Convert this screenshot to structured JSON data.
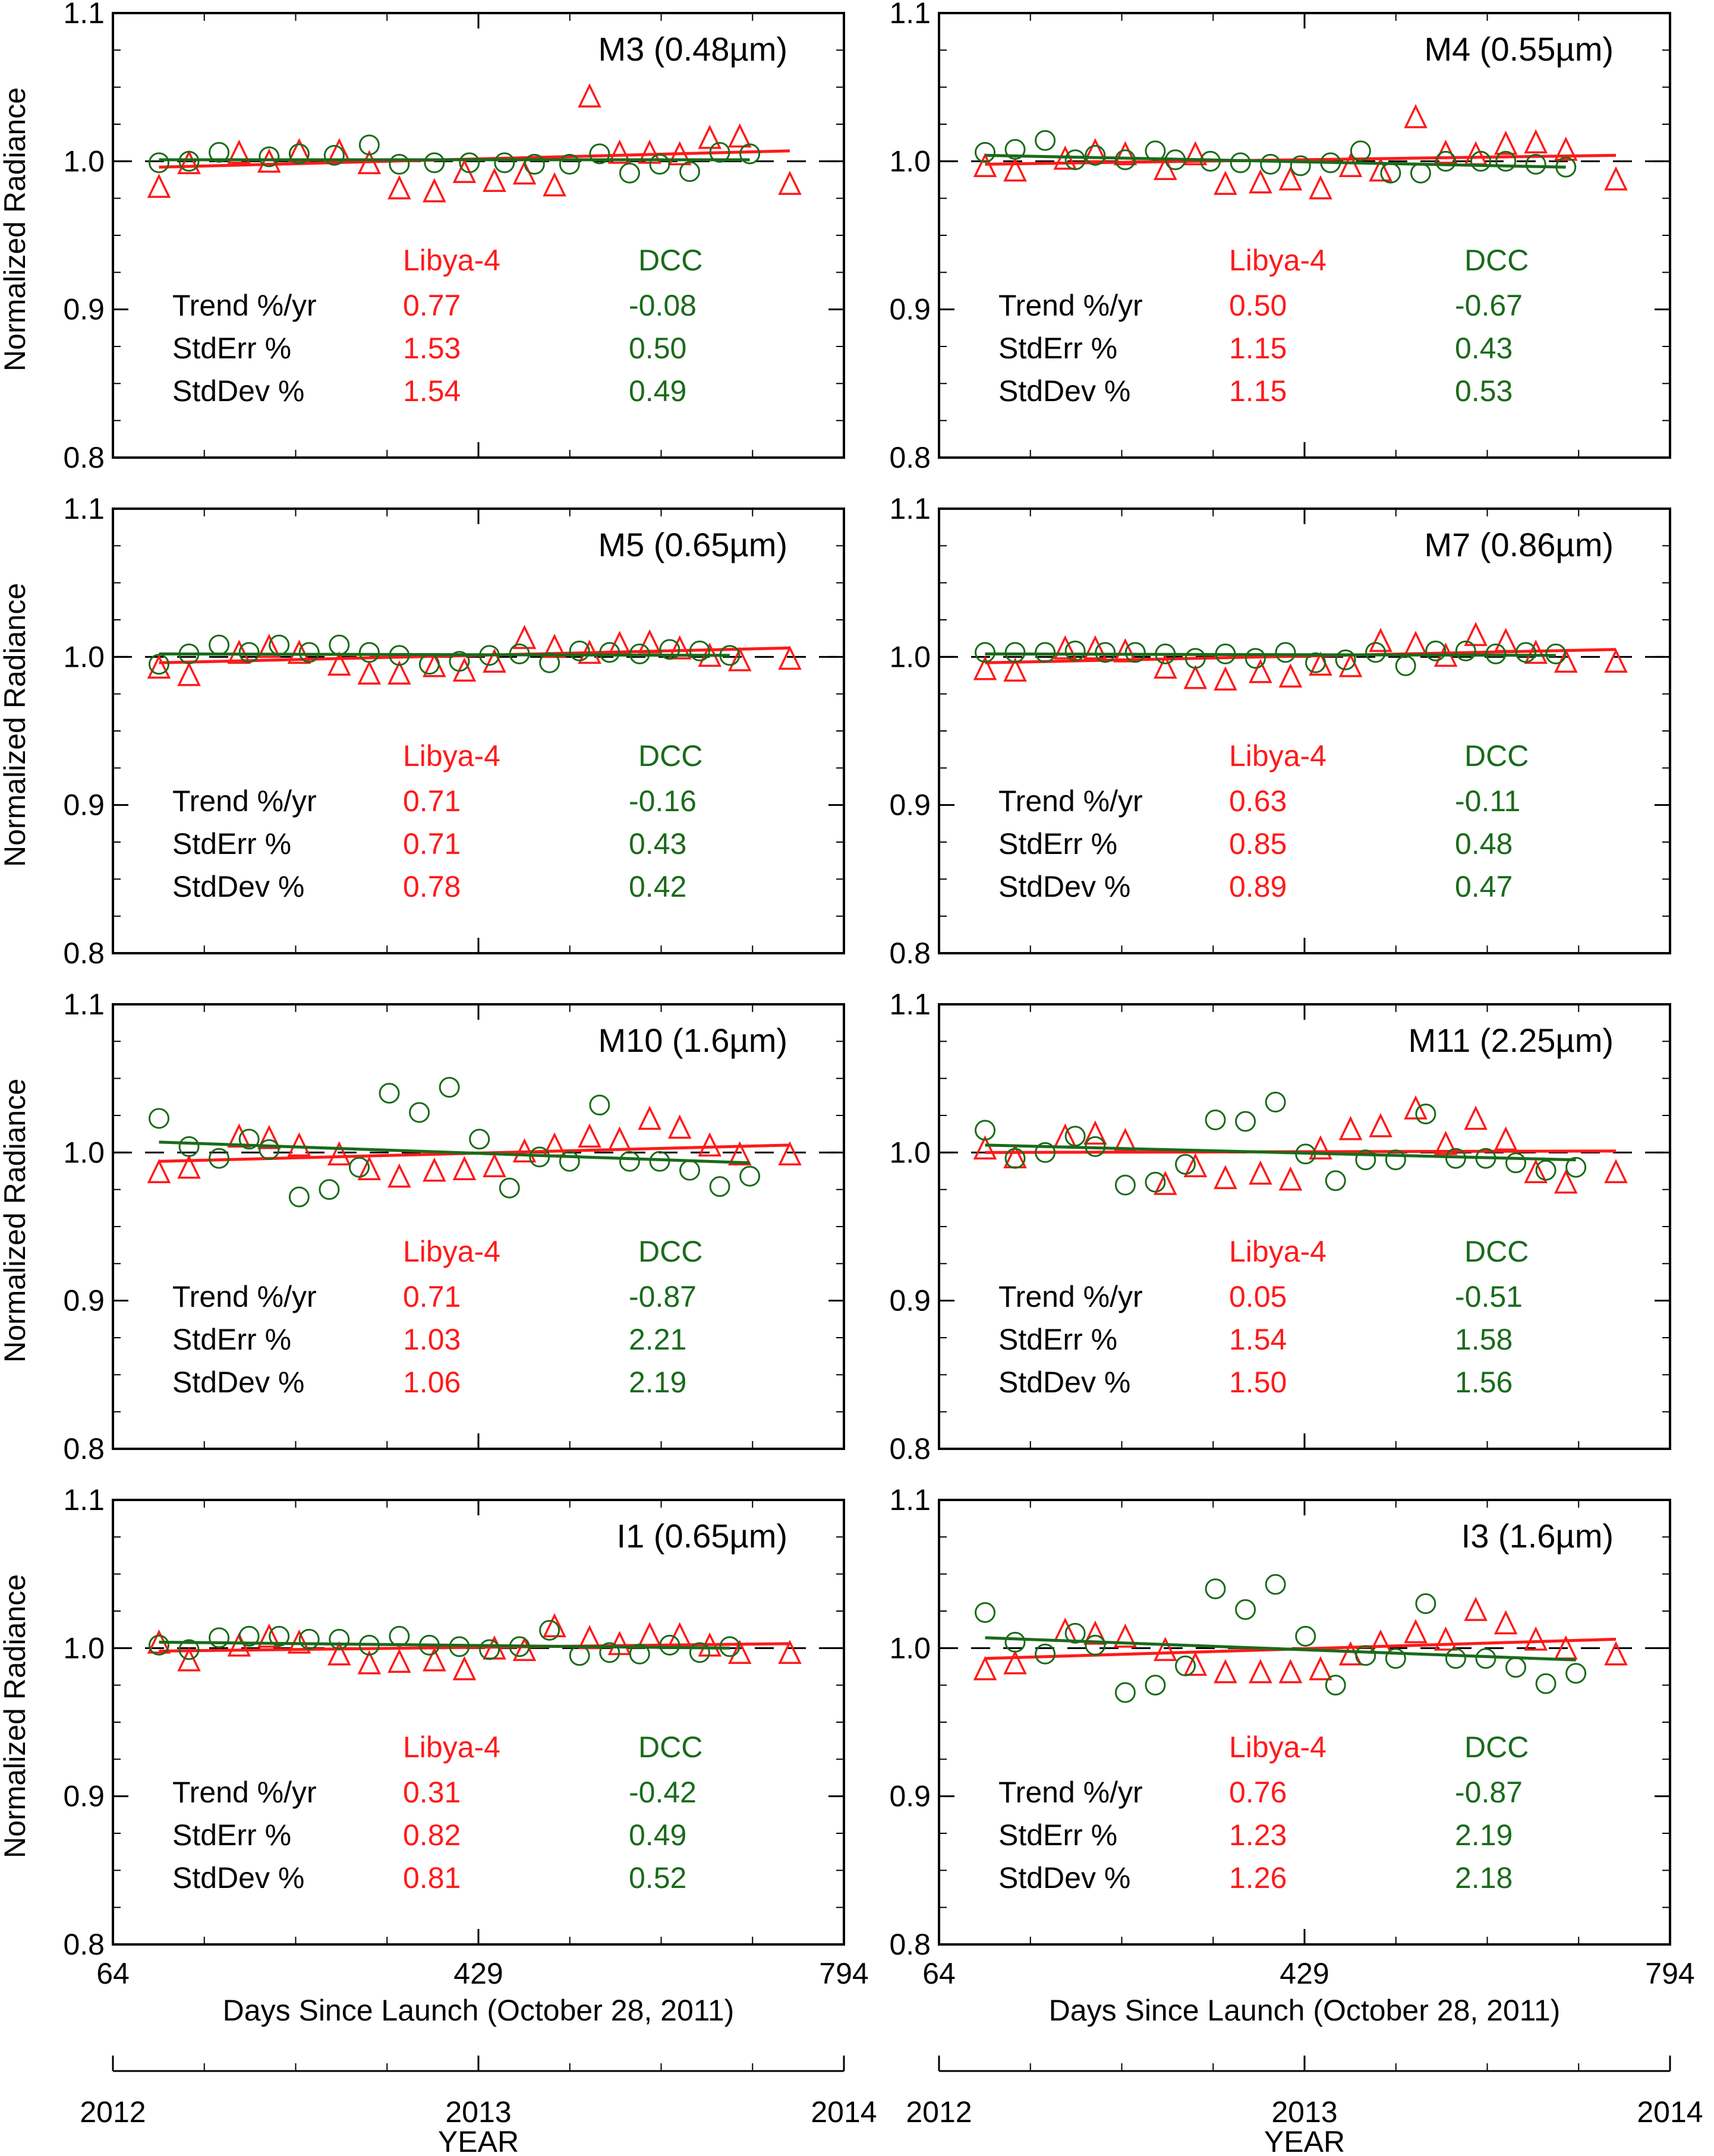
{
  "figure": {
    "ylabel": "Normalized Radiance",
    "xlabel": "Days Since Launch (October 28, 2011)",
    "year_label": "YEAR",
    "x_ticks": [
      "64",
      "429",
      "794"
    ],
    "year_ticks": [
      "2012",
      "2013",
      "2014"
    ],
    "y_ticks": [
      "0.8",
      "0.9",
      "1.0",
      "1.1"
    ],
    "stats_header": {
      "libya": "Libya-4",
      "dcc": "DCC"
    },
    "stat_labels": [
      "Trend %/yr",
      "StdErr %",
      "StdDev %"
    ],
    "colors": {
      "libya": "#ff1a1a",
      "dcc": "#1a6b1a",
      "axis": "#000000",
      "reference": "#000000"
    },
    "series_markers": {
      "libya": "triangle",
      "dcc": "circle"
    }
  },
  "chart_data": [
    {
      "type": "scatter",
      "title": "M3 (0.48µm)",
      "xlim": [
        64,
        794
      ],
      "ylim": [
        0.8,
        1.1
      ],
      "reference_line": 1.0,
      "series": [
        {
          "name": "Libya-4",
          "x": [
            110,
            140,
            190,
            220,
            250,
            290,
            320,
            350,
            385,
            415,
            445,
            475,
            505,
            540,
            570,
            600,
            630,
            660,
            690,
            740
          ],
          "y": [
            0.982,
            0.998,
            1.005,
            0.999,
            1.006,
            1.006,
            0.998,
            0.981,
            0.979,
            0.992,
            0.986,
            0.991,
            0.983,
            1.043,
            1.005,
            1.005,
            1.004,
            1.015,
            1.016,
            0.984
          ],
          "trend_start": 0.996,
          "trend_end": 1.007
        },
        {
          "name": "DCC",
          "x": [
            110,
            140,
            170,
            220,
            250,
            285,
            320,
            350,
            385,
            420,
            455,
            485,
            520,
            550,
            580,
            610,
            640,
            670,
            700
          ],
          "y": [
            0.999,
            1.0,
            1.006,
            1.003,
            1.005,
            1.004,
            1.011,
            0.998,
            0.999,
            0.999,
            0.999,
            0.998,
            0.998,
            1.005,
            0.992,
            0.998,
            0.993,
            1.006,
            1.005
          ],
          "trend_start": 1.001,
          "trend_end": 1.001
        }
      ],
      "stats": {
        "libya": [
          "0.77",
          "1.53",
          "1.54"
        ],
        "dcc": [
          "-0.08",
          "0.50",
          "0.49"
        ]
      }
    },
    {
      "type": "scatter",
      "title": "M4 (0.55µm)",
      "xlim": [
        64,
        794
      ],
      "ylim": [
        0.8,
        1.1
      ],
      "reference_line": 1.0,
      "series": [
        {
          "name": "Libya-4",
          "x": [
            110,
            140,
            190,
            220,
            250,
            290,
            320,
            350,
            385,
            415,
            445,
            475,
            505,
            540,
            570,
            600,
            630,
            660,
            690,
            740
          ],
          "y": [
            0.996,
            0.993,
            1.001,
            1.006,
            1.004,
            0.994,
            1.004,
            0.984,
            0.985,
            0.987,
            0.981,
            0.996,
            0.993,
            1.029,
            1.005,
            1.004,
            1.011,
            1.012,
            1.007,
            0.987
          ],
          "trend_start": 0.998,
          "trend_end": 1.004
        },
        {
          "name": "DCC",
          "x": [
            110,
            140,
            170,
            200,
            220,
            250,
            280,
            300,
            335,
            365,
            395,
            425,
            455,
            485,
            515,
            545,
            570,
            605,
            630,
            660,
            690
          ],
          "y": [
            1.006,
            1.008,
            1.014,
            1.001,
            1.004,
            1.001,
            1.007,
            1.001,
            1.0,
            0.999,
            0.998,
            0.997,
            0.999,
            1.007,
            0.992,
            0.992,
            1.0,
            1.0,
            1.0,
            0.998,
            0.996
          ],
          "trend_start": 1.004,
          "trend_end": 0.996
        }
      ],
      "stats": {
        "libya": [
          "0.50",
          "1.15",
          "1.15"
        ],
        "dcc": [
          "-0.67",
          "0.43",
          "0.53"
        ]
      }
    },
    {
      "type": "scatter",
      "title": "M5 (0.65µm)",
      "xlim": [
        64,
        794
      ],
      "ylim": [
        0.8,
        1.1
      ],
      "reference_line": 1.0,
      "series": [
        {
          "name": "Libya-4",
          "x": [
            110,
            140,
            190,
            220,
            250,
            290,
            320,
            350,
            385,
            415,
            445,
            475,
            505,
            540,
            570,
            600,
            630,
            660,
            690,
            740
          ],
          "y": [
            0.992,
            0.987,
            1.002,
            1.006,
            1.002,
            0.994,
            0.988,
            0.988,
            0.993,
            0.99,
            0.996,
            1.012,
            1.006,
            1.002,
            1.008,
            1.009,
            1.005,
            1.0,
            0.997,
            0.998
          ],
          "trend_start": 0.996,
          "trend_end": 1.006
        },
        {
          "name": "DCC",
          "x": [
            110,
            140,
            170,
            200,
            230,
            260,
            290,
            320,
            350,
            380,
            410,
            440,
            470,
            500,
            530,
            560,
            590,
            620,
            650,
            680
          ],
          "y": [
            0.995,
            1.002,
            1.008,
            1.003,
            1.008,
            1.003,
            1.008,
            1.003,
            1.001,
            0.995,
            0.997,
            1.001,
            1.002,
            0.996,
            1.004,
            1.003,
            1.002,
            1.005,
            1.004,
            1.001
          ],
          "trend_start": 1.002,
          "trend_end": 1.001
        }
      ],
      "stats": {
        "libya": [
          "0.71",
          "0.71",
          "0.78"
        ],
        "dcc": [
          "-0.16",
          "0.43",
          "0.42"
        ]
      }
    },
    {
      "type": "scatter",
      "title": "M7 (0.86µm)",
      "xlim": [
        64,
        794
      ],
      "ylim": [
        0.8,
        1.1
      ],
      "reference_line": 1.0,
      "series": [
        {
          "name": "Libya-4",
          "x": [
            110,
            140,
            190,
            220,
            250,
            290,
            320,
            350,
            385,
            415,
            445,
            475,
            505,
            540,
            570,
            600,
            630,
            660,
            690,
            740
          ],
          "y": [
            0.991,
            0.99,
            1.005,
            1.005,
            1.003,
            0.992,
            0.985,
            0.984,
            0.989,
            0.986,
            0.994,
            0.993,
            1.01,
            1.008,
            1.0,
            1.014,
            1.01,
            1.002,
            0.996,
            0.996
          ],
          "trend_start": 0.996,
          "trend_end": 1.005
        },
        {
          "name": "DCC",
          "x": [
            110,
            140,
            170,
            200,
            230,
            260,
            290,
            320,
            350,
            380,
            410,
            440,
            470,
            500,
            530,
            560,
            590,
            620,
            650,
            680
          ],
          "y": [
            1.003,
            1.003,
            1.003,
            1.004,
            1.003,
            1.003,
            1.002,
            0.999,
            1.002,
            0.999,
            1.003,
            0.996,
            0.998,
            1.003,
            0.994,
            1.004,
            1.004,
            1.002,
            1.003,
            1.002
          ],
          "trend_start": 1.002,
          "trend_end": 1.001
        }
      ],
      "stats": {
        "libya": [
          "0.63",
          "0.85",
          "0.89"
        ],
        "dcc": [
          "-0.11",
          "0.48",
          "0.47"
        ]
      }
    },
    {
      "type": "scatter",
      "title": "M10 (1.6µm)",
      "xlim": [
        64,
        794
      ],
      "ylim": [
        0.8,
        1.1
      ],
      "reference_line": 1.0,
      "series": [
        {
          "name": "Libya-4",
          "x": [
            110,
            140,
            190,
            220,
            250,
            290,
            320,
            350,
            385,
            415,
            445,
            475,
            505,
            540,
            570,
            600,
            630,
            660,
            690,
            740
          ],
          "y": [
            0.986,
            0.989,
            1.01,
            1.009,
            1.004,
            0.998,
            0.988,
            0.983,
            0.987,
            0.988,
            0.99,
            1.0,
            1.004,
            1.01,
            1.008,
            1.022,
            1.016,
            1.004,
            0.998,
            0.998
          ],
          "trend_start": 0.994,
          "trend_end": 1.005
        },
        {
          "name": "DCC",
          "x": [
            110,
            140,
            170,
            200,
            220,
            250,
            280,
            310,
            340,
            370,
            400,
            430,
            460,
            490,
            520,
            550,
            580,
            610,
            640,
            670,
            700
          ],
          "y": [
            1.023,
            1.004,
            0.996,
            1.009,
            1.002,
            0.97,
            0.975,
            0.99,
            1.04,
            1.027,
            1.044,
            1.009,
            0.976,
            0.997,
            0.994,
            1.032,
            0.994,
            0.994,
            0.988,
            0.977,
            0.984
          ],
          "trend_start": 1.007,
          "trend_end": 0.993
        }
      ],
      "stats": {
        "libya": [
          "0.71",
          "1.03",
          "1.06"
        ],
        "dcc": [
          "-0.87",
          "2.21",
          "2.19"
        ]
      }
    },
    {
      "type": "scatter",
      "title": "M11 (2.25µm)",
      "xlim": [
        64,
        794
      ],
      "ylim": [
        0.8,
        1.1
      ],
      "reference_line": 1.0,
      "series": [
        {
          "name": "Libya-4",
          "x": [
            110,
            140,
            190,
            220,
            250,
            290,
            320,
            350,
            385,
            415,
            445,
            475,
            505,
            540,
            570,
            600,
            630,
            660,
            690,
            740
          ],
          "y": [
            1.002,
            0.996,
            1.01,
            1.012,
            1.007,
            0.978,
            0.99,
            0.982,
            0.985,
            0.981,
            1.002,
            1.015,
            1.017,
            1.029,
            1.005,
            1.022,
            1.008,
            0.986,
            0.979,
            0.986
          ],
          "trend_start": 1.0,
          "trend_end": 1.001
        },
        {
          "name": "DCC",
          "x": [
            110,
            140,
            170,
            200,
            220,
            250,
            280,
            310,
            340,
            370,
            400,
            430,
            460,
            490,
            520,
            550,
            580,
            610,
            640,
            670,
            700
          ],
          "y": [
            1.015,
            0.996,
            1.0,
            1.011,
            1.004,
            0.978,
            0.98,
            0.992,
            1.022,
            1.021,
            1.034,
            0.999,
            0.981,
            0.995,
            0.995,
            1.026,
            0.996,
            0.996,
            0.993,
            0.988,
            0.99
          ],
          "trend_start": 1.005,
          "trend_end": 0.995
        }
      ],
      "stats": {
        "libya": [
          "0.05",
          "1.54",
          "1.50"
        ],
        "dcc": [
          "-0.51",
          "1.58",
          "1.56"
        ]
      }
    },
    {
      "type": "scatter",
      "title": "I1 (0.65µm)",
      "xlim": [
        64,
        794
      ],
      "ylim": [
        0.8,
        1.1
      ],
      "reference_line": 1.0,
      "series": [
        {
          "name": "Libya-4",
          "x": [
            110,
            140,
            190,
            220,
            250,
            290,
            320,
            350,
            385,
            415,
            445,
            475,
            505,
            540,
            570,
            600,
            630,
            660,
            690,
            740
          ],
          "y": [
            1.003,
            0.991,
            1.001,
            1.007,
            1.003,
            0.995,
            0.989,
            0.99,
            0.991,
            0.985,
            0.999,
            0.998,
            1.014,
            1.006,
            1.002,
            1.008,
            1.008,
            1.001,
            0.996,
            0.996
          ],
          "trend_start": 0.998,
          "trend_end": 1.003
        },
        {
          "name": "DCC",
          "x": [
            110,
            140,
            170,
            200,
            230,
            260,
            290,
            320,
            350,
            380,
            410,
            440,
            470,
            500,
            530,
            560,
            590,
            620,
            650,
            680
          ],
          "y": [
            1.002,
            0.999,
            1.007,
            1.008,
            1.008,
            1.006,
            1.006,
            1.002,
            1.008,
            1.002,
            1.001,
            0.999,
            1.001,
            1.012,
            0.995,
            0.997,
            0.996,
            1.002,
            0.997,
            1.001
          ],
          "trend_start": 1.004,
          "trend_end": 1.0
        }
      ],
      "stats": {
        "libya": [
          "0.31",
          "0.82",
          "0.81"
        ],
        "dcc": [
          "-0.42",
          "0.49",
          "0.52"
        ]
      }
    },
    {
      "type": "scatter",
      "title": "I3 (1.6µm)",
      "xlim": [
        64,
        794
      ],
      "ylim": [
        0.8,
        1.1
      ],
      "reference_line": 1.0,
      "series": [
        {
          "name": "Libya-4",
          "x": [
            110,
            140,
            190,
            220,
            250,
            290,
            320,
            350,
            385,
            415,
            445,
            475,
            505,
            540,
            570,
            600,
            630,
            660,
            690,
            740
          ],
          "y": [
            0.985,
            0.989,
            1.011,
            1.009,
            1.007,
            0.998,
            0.988,
            0.983,
            0.983,
            0.983,
            0.985,
            0.995,
            1.003,
            1.01,
            1.005,
            1.025,
            1.016,
            1.005,
            0.999,
            0.995
          ],
          "trend_start": 0.993,
          "trend_end": 1.006
        },
        {
          "name": "DCC",
          "x": [
            110,
            140,
            170,
            200,
            220,
            250,
            280,
            310,
            340,
            370,
            400,
            430,
            460,
            490,
            520,
            550,
            580,
            610,
            640,
            670,
            700
          ],
          "y": [
            1.024,
            1.004,
            0.996,
            1.01,
            1.002,
            0.97,
            0.975,
            0.988,
            1.04,
            1.026,
            1.043,
            1.008,
            0.975,
            0.995,
            0.993,
            1.03,
            0.993,
            0.993,
            0.987,
            0.976,
            0.983
          ],
          "trend_start": 1.007,
          "trend_end": 0.992
        }
      ],
      "stats": {
        "libya": [
          "0.76",
          "1.23",
          "1.26"
        ],
        "dcc": [
          "-0.87",
          "2.19",
          "2.18"
        ]
      }
    }
  ]
}
